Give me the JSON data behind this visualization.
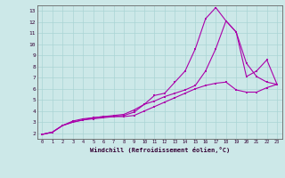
{
  "xlabel": "Windchill (Refroidissement éolien,°C)",
  "bg_color": "#cce8e8",
  "line_color": "#aa00aa",
  "xlim": [
    -0.5,
    23.5
  ],
  "ylim": [
    1.5,
    13.5
  ],
  "xticks": [
    0,
    1,
    2,
    3,
    4,
    5,
    6,
    7,
    8,
    9,
    10,
    11,
    12,
    13,
    14,
    15,
    16,
    17,
    18,
    19,
    20,
    21,
    22,
    23
  ],
  "yticks": [
    2,
    3,
    4,
    5,
    6,
    7,
    8,
    9,
    10,
    11,
    12,
    13
  ],
  "grid_color": "#aad4d4",
  "line1_x": [
    0,
    1,
    2,
    3,
    4,
    5,
    6,
    7,
    8,
    9,
    10,
    11,
    12,
    13,
    14,
    15,
    16,
    17,
    18,
    19,
    20,
    21,
    22,
    23
  ],
  "line1_y": [
    1.9,
    2.1,
    2.7,
    3.1,
    3.3,
    3.4,
    3.5,
    3.5,
    3.5,
    3.6,
    4.0,
    4.4,
    4.8,
    5.2,
    5.6,
    6.0,
    6.3,
    6.5,
    6.6,
    5.9,
    5.7,
    5.7,
    6.1,
    6.4
  ],
  "line2_x": [
    0,
    1,
    2,
    3,
    4,
    5,
    6,
    7,
    8,
    9,
    10,
    11,
    12,
    13,
    14,
    15,
    16,
    17,
    18,
    19,
    20,
    21,
    22,
    23
  ],
  "line2_y": [
    1.9,
    2.1,
    2.7,
    3.0,
    3.2,
    3.3,
    3.4,
    3.5,
    3.6,
    3.9,
    4.6,
    5.4,
    5.6,
    6.6,
    7.6,
    9.6,
    12.3,
    13.3,
    12.1,
    11.1,
    8.3,
    7.1,
    6.6,
    6.4
  ],
  "line3_x": [
    0,
    1,
    2,
    3,
    4,
    5,
    6,
    7,
    8,
    9,
    10,
    11,
    12,
    13,
    14,
    15,
    16,
    17,
    18,
    19,
    20,
    21,
    22,
    23
  ],
  "line3_y": [
    1.9,
    2.1,
    2.7,
    3.0,
    3.2,
    3.4,
    3.5,
    3.6,
    3.7,
    4.1,
    4.6,
    4.9,
    5.3,
    5.6,
    5.9,
    6.3,
    7.6,
    9.6,
    12.1,
    11.1,
    7.1,
    7.6,
    8.6,
    6.4
  ]
}
